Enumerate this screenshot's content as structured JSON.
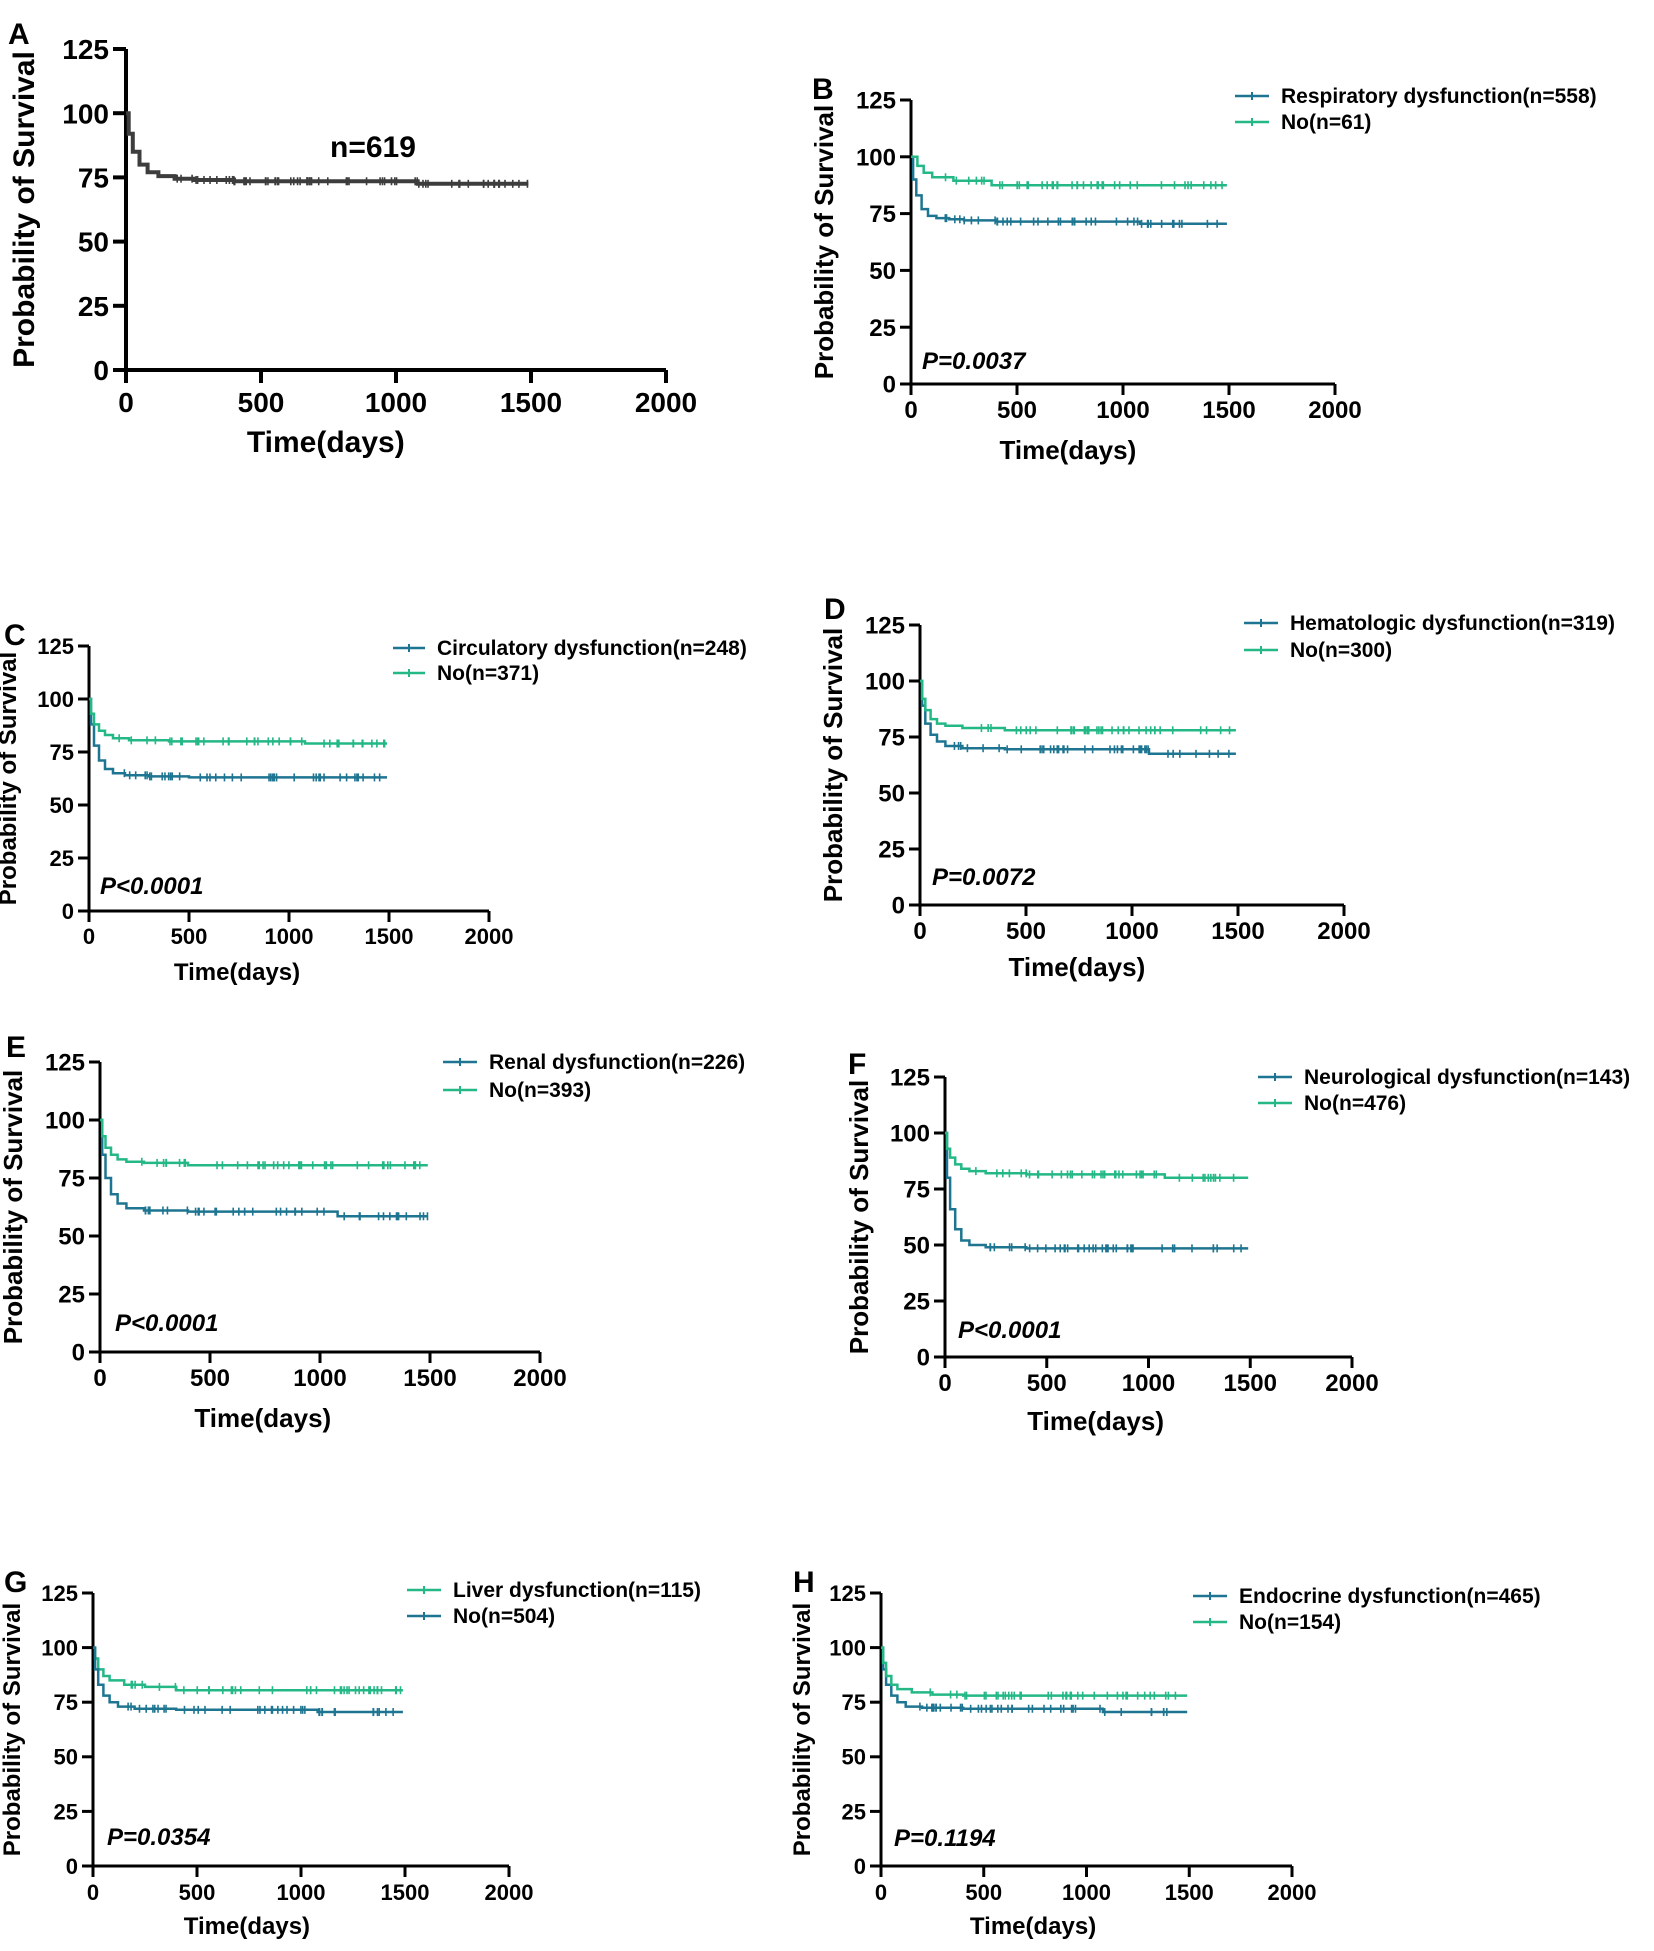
{
  "colors": {
    "dark_blue": "#1e7591",
    "green": "#23b886",
    "black": "#3d3d3d"
  },
  "chart_data": [
    {
      "panel": "A",
      "type": "line",
      "title": "",
      "xlabel": "Time(days)",
      "ylabel": "Probability of Survival",
      "xlim": [
        0,
        2000
      ],
      "ylim": [
        0,
        125
      ],
      "xticks": [
        "0",
        "500",
        "1000",
        "1500",
        "2000"
      ],
      "yticks": [
        "0",
        "25",
        "50",
        "75",
        "100",
        "125"
      ],
      "annotation": "n=619",
      "series": [
        {
          "name": "",
          "color": "#3d3d3d",
          "x": [
            0,
            10,
            25,
            50,
            80,
            120,
            180,
            250,
            400,
            700,
            1000,
            1080,
            1490
          ],
          "y": [
            100,
            92,
            85,
            80,
            77,
            75.5,
            74.5,
            74,
            73.5,
            73.5,
            73.5,
            72.5,
            72.5
          ]
        }
      ]
    },
    {
      "panel": "B",
      "type": "line",
      "title": "",
      "xlabel": "Time(days)",
      "ylabel": "Probability of Survival",
      "xlim": [
        0,
        2000
      ],
      "ylim": [
        0,
        125
      ],
      "xticks": [
        "0",
        "500",
        "1000",
        "1500",
        "2000"
      ],
      "yticks": [
        "0",
        "25",
        "50",
        "75",
        "100",
        "125"
      ],
      "annotation": "P=0.0037",
      "series": [
        {
          "name": "Respiratory dysfunction(n=558)",
          "color": "#1e7591",
          "x": [
            0,
            10,
            25,
            50,
            80,
            120,
            180,
            250,
            400,
            700,
            1080,
            1490
          ],
          "y": [
            100,
            90,
            83,
            77,
            74,
            73,
            72.5,
            72,
            71.5,
            71.5,
            70.5,
            70.5
          ]
        },
        {
          "name": "No(n=61)",
          "color": "#23b886",
          "x": [
            0,
            30,
            60,
            100,
            200,
            380,
            1490
          ],
          "y": [
            100,
            96,
            93,
            91,
            89.5,
            87.5,
            87.5
          ]
        }
      ]
    },
    {
      "panel": "C",
      "type": "line",
      "title": "",
      "xlabel": "Time(days)",
      "ylabel": "Probability of Survival",
      "xlim": [
        0,
        2000
      ],
      "ylim": [
        0,
        125
      ],
      "xticks": [
        "0",
        "500",
        "1000",
        "1500",
        "2000"
      ],
      "yticks": [
        "0",
        "25",
        "50",
        "75",
        "100",
        "125"
      ],
      "annotation": "P<0.0001",
      "series": [
        {
          "name": "Circulatory dysfunction(n=248)",
          "color": "#1e7591",
          "x": [
            0,
            10,
            25,
            50,
            80,
            120,
            180,
            300,
            500,
            1490
          ],
          "y": [
            100,
            88,
            78,
            71,
            67,
            65,
            64,
            63.5,
            63,
            63
          ]
        },
        {
          "name": "No(n=371)",
          "color": "#23b886",
          "x": [
            0,
            10,
            25,
            50,
            80,
            120,
            200,
            400,
            1080,
            1490
          ],
          "y": [
            100,
            93,
            88,
            85,
            83,
            81.5,
            80.5,
            80,
            79,
            79
          ]
        }
      ]
    },
    {
      "panel": "D",
      "type": "line",
      "title": "",
      "xlabel": "Time(days)",
      "ylabel": "Probability of Survival",
      "xlim": [
        0,
        2000
      ],
      "ylim": [
        0,
        125
      ],
      "xticks": [
        "0",
        "500",
        "1000",
        "1500",
        "2000"
      ],
      "yticks": [
        "0",
        "25",
        "50",
        "75",
        "100",
        "125"
      ],
      "annotation": "P=0.0072",
      "series": [
        {
          "name": "Hematologic dysfunction(n=319)",
          "color": "#1e7591",
          "x": [
            0,
            10,
            25,
            50,
            80,
            120,
            200,
            400,
            1080,
            1490
          ],
          "y": [
            100,
            89,
            81,
            76,
            73,
            71,
            70,
            69.5,
            67.5,
            67.5
          ]
        },
        {
          "name": "No(n=300)",
          "color": "#23b886",
          "x": [
            0,
            10,
            25,
            50,
            80,
            120,
            200,
            400,
            1490
          ],
          "y": [
            100,
            92,
            87,
            83,
            81,
            80,
            79,
            78,
            78
          ]
        }
      ]
    },
    {
      "panel": "E",
      "type": "line",
      "title": "",
      "xlabel": "Time(days)",
      "ylabel": "Probability of Survival",
      "xlim": [
        0,
        2000
      ],
      "ylim": [
        0,
        125
      ],
      "xticks": [
        "0",
        "500",
        "1000",
        "1500",
        "2000"
      ],
      "yticks": [
        "0",
        "25",
        "50",
        "75",
        "100",
        "125"
      ],
      "annotation": "P<0.0001",
      "series": [
        {
          "name": "Renal dysfunction(n=226)",
          "color": "#1e7591",
          "x": [
            0,
            10,
            25,
            50,
            80,
            120,
            200,
            400,
            1080,
            1490
          ],
          "y": [
            100,
            85,
            75,
            68,
            64,
            62,
            61,
            60.5,
            58.5,
            58.5
          ]
        },
        {
          "name": "No(n=393)",
          "color": "#23b886",
          "x": [
            0,
            10,
            25,
            50,
            80,
            120,
            200,
            400,
            1490
          ],
          "y": [
            100,
            93,
            88,
            85,
            83,
            82,
            81.5,
            80.5,
            80.5
          ]
        }
      ]
    },
    {
      "panel": "F",
      "type": "line",
      "title": "",
      "xlabel": "Time(days)",
      "ylabel": "Probability of Survival",
      "xlim": [
        0,
        2000
      ],
      "ylim": [
        0,
        125
      ],
      "xticks": [
        "0",
        "500",
        "1000",
        "1500",
        "2000"
      ],
      "yticks": [
        "0",
        "25",
        "50",
        "75",
        "100",
        "125"
      ],
      "annotation": "P<0.0001",
      "series": [
        {
          "name": "Neurological dysfunction(n=143)",
          "color": "#1e7591",
          "x": [
            0,
            10,
            25,
            50,
            80,
            120,
            200,
            400,
            1490
          ],
          "y": [
            100,
            80,
            66,
            57,
            52,
            50,
            49,
            48.5,
            48.5
          ]
        },
        {
          "name": "No(n=476)",
          "color": "#23b886",
          "x": [
            0,
            10,
            25,
            50,
            80,
            120,
            200,
            400,
            1080,
            1490
          ],
          "y": [
            100,
            93,
            89,
            86,
            84,
            83,
            82,
            81.5,
            80,
            80
          ]
        }
      ]
    },
    {
      "panel": "G",
      "type": "line",
      "title": "",
      "xlabel": "Time(days)",
      "ylabel": "Probability of Survival",
      "xlim": [
        0,
        2000
      ],
      "ylim": [
        0,
        125
      ],
      "xticks": [
        "0",
        "500",
        "1000",
        "1500",
        "2000"
      ],
      "yticks": [
        "0",
        "25",
        "50",
        "75",
        "100",
        "125"
      ],
      "annotation": "P=0.0354",
      "series": [
        {
          "name": "Liver dysfunction(n=115)",
          "color": "#23b886",
          "x": [
            0,
            10,
            25,
            50,
            80,
            150,
            250,
            400,
            1490
          ],
          "y": [
            100,
            95,
            90,
            87,
            85,
            83,
            82,
            80.5,
            80.5
          ]
        },
        {
          "name": "No(n=504)",
          "color": "#1e7591",
          "x": [
            0,
            10,
            25,
            50,
            80,
            120,
            200,
            400,
            1080,
            1490
          ],
          "y": [
            100,
            90,
            83,
            78,
            75,
            73,
            72,
            71.5,
            70.5,
            70.5
          ]
        }
      ]
    },
    {
      "panel": "H",
      "type": "line",
      "title": "",
      "xlabel": "Time(days)",
      "ylabel": "Probability of Survival",
      "xlim": [
        0,
        2000
      ],
      "ylim": [
        0,
        125
      ],
      "xticks": [
        "0",
        "500",
        "1000",
        "1500",
        "2000"
      ],
      "yticks": [
        "0",
        "25",
        "50",
        "75",
        "100",
        "125"
      ],
      "annotation": "P=0.1194",
      "series": [
        {
          "name": "Endocrine dysfunction(n=465)",
          "color": "#1e7591",
          "x": [
            0,
            10,
            25,
            50,
            80,
            120,
            200,
            400,
            1080,
            1490
          ],
          "y": [
            100,
            90,
            83,
            78,
            75,
            73,
            72.5,
            72,
            70.5,
            70.5
          ]
        },
        {
          "name": "No(n=154)",
          "color": "#23b886",
          "x": [
            0,
            10,
            25,
            50,
            80,
            150,
            250,
            400,
            1490
          ],
          "y": [
            100,
            93,
            87,
            83,
            81,
            79.5,
            78.5,
            78,
            78
          ]
        }
      ]
    }
  ]
}
